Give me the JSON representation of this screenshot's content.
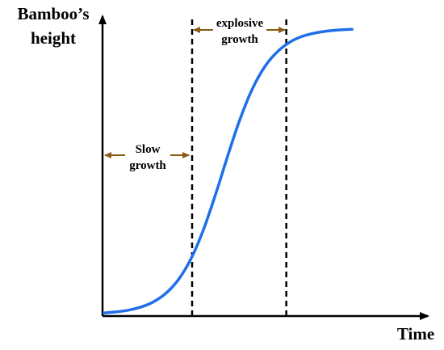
{
  "chart_data": {
    "type": "line",
    "xlabel": "Time",
    "ylabel_lines": [
      "Bamboo’s",
      "height"
    ],
    "xlim": [
      0,
      100
    ],
    "ylim": [
      0,
      100
    ],
    "grid": false,
    "series": [
      {
        "color": "#1f6fe8",
        "x": [
          0,
          5,
          10,
          15,
          20,
          25,
          30,
          35,
          40,
          45,
          50,
          55,
          60,
          65,
          70,
          75,
          80,
          85,
          90,
          95,
          100
        ],
        "y": [
          0.5,
          0.9,
          1.5,
          2.6,
          4.4,
          7.4,
          12.1,
          19.2,
          29.2,
          41.7,
          55.3,
          68.1,
          78.5,
          86.1,
          91.1,
          94.4,
          96.4,
          97.5,
          98.2,
          98.6,
          98.8
        ]
      }
    ],
    "phase_boundaries": [
      35.5,
      73.5
    ],
    "annotations": [
      {
        "id": "slow",
        "lines": [
          "Slow",
          "growth"
        ],
        "arrow_color": "#8b5a14"
      },
      {
        "id": "explosive",
        "lines": [
          "explosive",
          "growth"
        ],
        "arrow_color": "#8b5a14"
      }
    ]
  }
}
